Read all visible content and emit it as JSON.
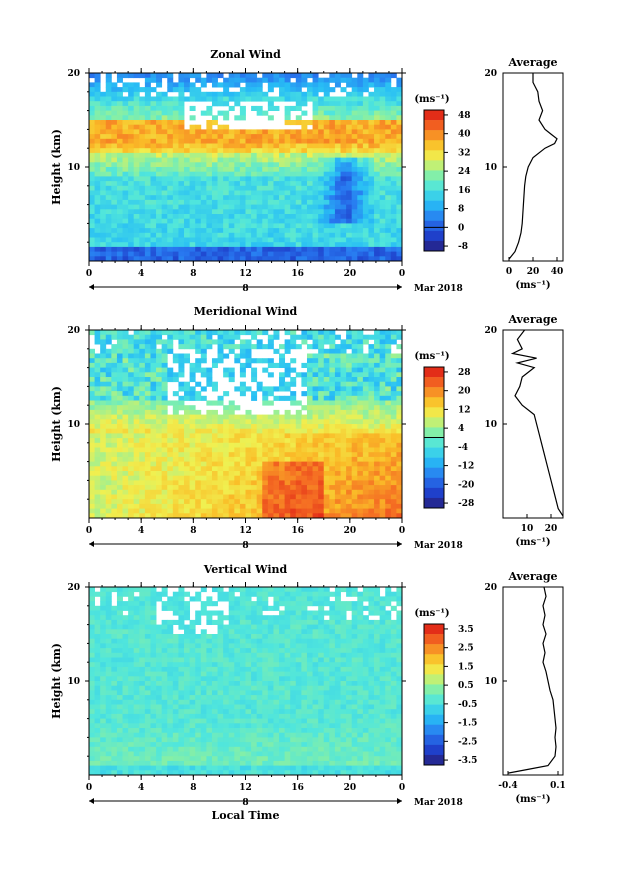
{
  "chart_data": [
    {
      "type": "heatmap",
      "title": "Zonal Wind",
      "ylabel": "Height (km)",
      "y_ticks": [
        "20",
        "10"
      ],
      "xlabel": "",
      "x_ticks": [
        "0",
        "4",
        "8",
        "12",
        "16",
        "20",
        "0"
      ],
      "date_label": "8",
      "month_label": "Mar 2018",
      "colorbar": {
        "unit": "(ms⁻¹)",
        "ticks": [
          "48",
          "40",
          "32",
          "24",
          "16",
          "8",
          "0",
          "-8"
        ],
        "range": [
          -8,
          48
        ]
      },
      "profile": {
        "title": "Average",
        "y_ticks": [
          "20",
          "10"
        ],
        "x_ticks": [
          "0",
          "20",
          "40"
        ],
        "xlabel": "(ms⁻¹)",
        "xlim": [
          -5,
          45
        ],
        "heights": [
          0.2,
          1,
          2,
          3,
          4,
          5,
          6,
          7,
          8,
          9,
          10,
          11,
          12,
          12.5,
          13,
          13.5,
          14,
          15,
          16,
          17,
          18,
          18.5,
          19,
          20
        ],
        "values": [
          0,
          5,
          8,
          10,
          11,
          11.5,
          12,
          12.5,
          13,
          14,
          16,
          20,
          30,
          38,
          40,
          35,
          30,
          25,
          28,
          25,
          24,
          22,
          20,
          20
        ]
      }
    },
    {
      "type": "heatmap",
      "title": "Meridional Wind",
      "ylabel": "Height (km)",
      "y_ticks": [
        "20",
        "10"
      ],
      "xlabel": "",
      "x_ticks": [
        "0",
        "4",
        "8",
        "12",
        "16",
        "20",
        "0"
      ],
      "date_label": "8",
      "month_label": "Mar 2018",
      "colorbar": {
        "unit": "(ms⁻¹)",
        "ticks": [
          "28",
          "20",
          "12",
          "4",
          "-4",
          "-12",
          "-20",
          "-28"
        ],
        "range": [
          -28,
          28
        ]
      },
      "profile": {
        "title": "Average",
        "y_ticks": [
          "20",
          "10"
        ],
        "x_ticks": [
          "10",
          "20"
        ],
        "xlabel": "(ms⁻¹)",
        "xlim": [
          0,
          25
        ],
        "heights": [
          0.2,
          1,
          2,
          3,
          4,
          5,
          6,
          7,
          8,
          9,
          10,
          11,
          12,
          13,
          14,
          15,
          16,
          16.5,
          17,
          17.5,
          18,
          19,
          20
        ],
        "values": [
          25,
          23,
          22,
          21,
          20,
          19,
          18,
          17,
          16,
          15,
          14,
          13,
          8,
          5,
          7,
          8,
          13,
          6,
          14,
          4,
          8,
          6,
          9
        ]
      }
    },
    {
      "type": "heatmap",
      "title": "Vertical Wind",
      "ylabel": "Height (km)",
      "y_ticks": [
        "20",
        "10"
      ],
      "xlabel": "Local Time",
      "x_ticks": [
        "0",
        "4",
        "8",
        "12",
        "16",
        "20",
        "0"
      ],
      "date_label": "8",
      "month_label": "Mar 2018",
      "colorbar": {
        "unit": "(ms⁻¹)",
        "ticks": [
          "3.5",
          "2.5",
          "1.5",
          "0.5",
          "-0.5",
          "-1.5",
          "-2.5",
          "-3.5"
        ],
        "range": [
          -3.5,
          3.5
        ]
      },
      "profile": {
        "title": "Average",
        "y_ticks": [
          "20",
          "10"
        ],
        "x_ticks": [
          "-0.4",
          "0.1"
        ],
        "xlabel": "(ms⁻¹)",
        "xlim": [
          -0.45,
          0.15
        ],
        "heights": [
          0.2,
          0.6,
          1,
          2,
          3,
          4,
          5,
          6,
          7,
          8,
          9,
          10,
          11,
          12,
          13,
          14,
          15,
          16,
          17,
          18,
          19,
          20
        ],
        "values": [
          -0.4,
          -0.2,
          0.0,
          0.07,
          0.08,
          0.07,
          0.08,
          0.07,
          0.06,
          0.05,
          0.02,
          0.0,
          -0.02,
          -0.05,
          -0.03,
          -0.05,
          -0.02,
          -0.05,
          -0.03,
          -0.05,
          -0.02,
          -0.04
        ]
      }
    }
  ]
}
